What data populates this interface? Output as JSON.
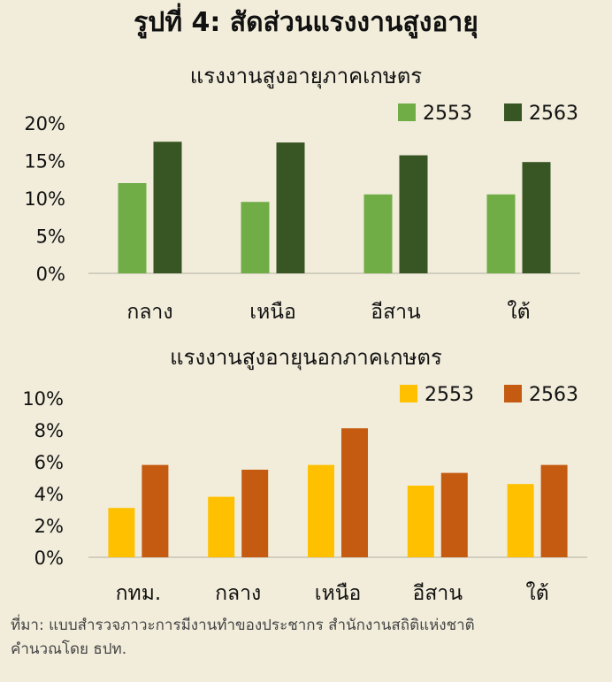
{
  "title": "รูปที่ 4: สัดส่วนแรงงานสูงอายุ",
  "colors": {
    "background": "#f2eddb",
    "agri_2553": "#70ad47",
    "agri_2563": "#375623",
    "nonagri_2553": "#ffc000",
    "nonagri_2563": "#c55a11"
  },
  "chart_data": [
    {
      "type": "bar",
      "title": "แรงงานสูงอายุภาคเกษตร",
      "categories": [
        "กลาง",
        "เหนือ",
        "อีสาน",
        "ใต้"
      ],
      "series": [
        {
          "name": "2553",
          "values": [
            12.0,
            9.5,
            10.5,
            10.5
          ]
        },
        {
          "name": "2563",
          "values": [
            17.5,
            17.4,
            15.7,
            14.8
          ]
        }
      ],
      "ylim": [
        0,
        20
      ],
      "yticks": [
        0,
        5,
        10,
        15,
        20
      ],
      "ytick_labels": [
        "0%",
        "5%",
        "10%",
        "15%",
        "20%"
      ],
      "grid": false,
      "legend": "top-right"
    },
    {
      "type": "bar",
      "title": "แรงงานสูงอายุนอกภาคเกษตร",
      "categories": [
        "กทม.",
        "กลาง",
        "เหนือ",
        "อีสาน",
        "ใต้"
      ],
      "series": [
        {
          "name": "2553",
          "values": [
            3.1,
            3.8,
            5.8,
            4.5,
            4.6
          ]
        },
        {
          "name": "2563",
          "values": [
            5.8,
            5.5,
            8.1,
            5.3,
            5.8
          ]
        }
      ],
      "ylim": [
        0,
        10
      ],
      "yticks": [
        0,
        2,
        4,
        6,
        8,
        10
      ],
      "ytick_labels": [
        "0%",
        "2%",
        "4%",
        "6%",
        "8%",
        "10%"
      ],
      "grid": false,
      "legend": "top-right"
    }
  ],
  "source": {
    "line1": "ที่มา: แบบสำรวจภาวะการมีงานทำของประชากร สำนักงานสถิติแห่งชาติ",
    "line2": "คำนวณโดย ธปท."
  }
}
